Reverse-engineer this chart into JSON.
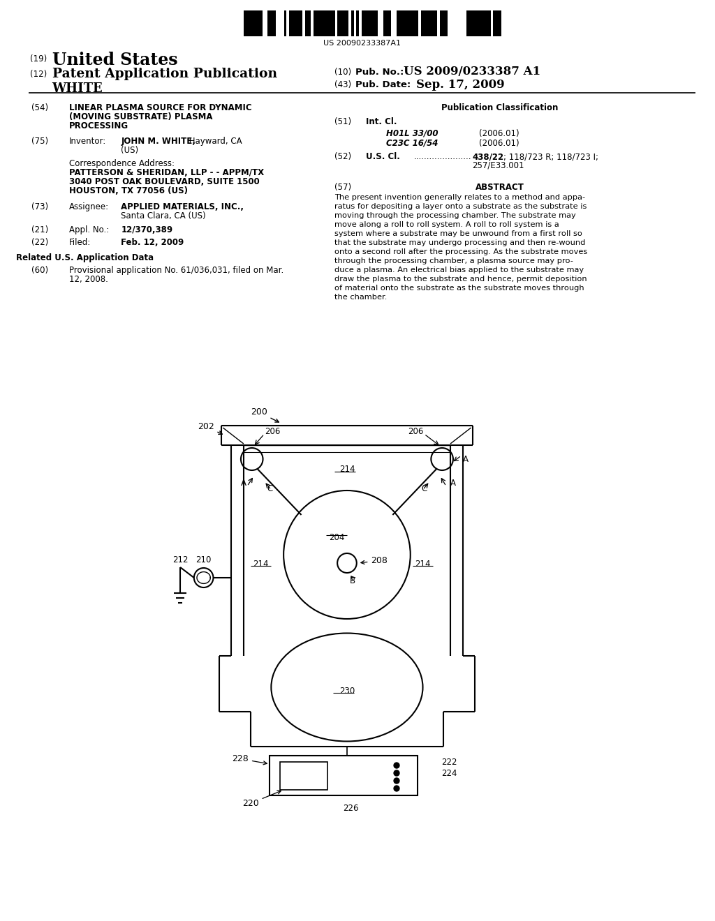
{
  "bg_color": "#ffffff",
  "barcode_text": "US 20090233387A1",
  "title_text": "LINEAR PLASMA SOURCE FOR DYNAMIC\n(MOVING SUBSTRATE) PLASMA\nPROCESSING",
  "pub_num": "US 2009/0233387 A1",
  "pub_date": "Sep. 17, 2009",
  "inventor_value": "JOHN M. WHITE, Hayward, CA\n(US)",
  "corr_name": "PATTERSON & SHERIDAN, LLP - - APPM/TX",
  "corr_addr1": "3040 POST OAK BOULEVARD, SUITE 1500",
  "corr_addr2": "HOUSTON, TX 77056 (US)",
  "assignee_value": "APPLIED MATERIALS, INC.,\nSanta Clara, CA (US)",
  "appl_value": "12/370,389",
  "filed_value": "Feb. 12, 2009",
  "related_text": "Provisional application No. 61/036,031, filed on Mar.\n12, 2008.",
  "intcl_h01l": "H01L 33/00",
  "intcl_h01l_year": "(2006.01)",
  "intcl_c23c": "C23C 16/54",
  "intcl_c23c_year": "(2006.01)",
  "uscl_dots": "438/22",
  "uscl_rest": "; 118/723 R; 118/723 I;\n                                 257/E33.001",
  "abstract_text": "The present invention generally relates to a method and appa-\nratus for depositing a layer onto a substrate as the substrate is\nmoving through the processing chamber. The substrate may\nmove along a roll to roll system. A roll to roll system is a\nsystem where a substrate may be unwound from a first roll so\nthat the substrate may undergo processing and then re-wound\nonto a second roll after the processing. As the substrate moves\nthrough the processing chamber, a plasma source may pro-\nduce a plasma. An electrical bias applied to the substrate may\ndraw the plasma to the substrate and hence, permit deposition\nof material onto the substrate as the substrate moves through\nthe chamber."
}
